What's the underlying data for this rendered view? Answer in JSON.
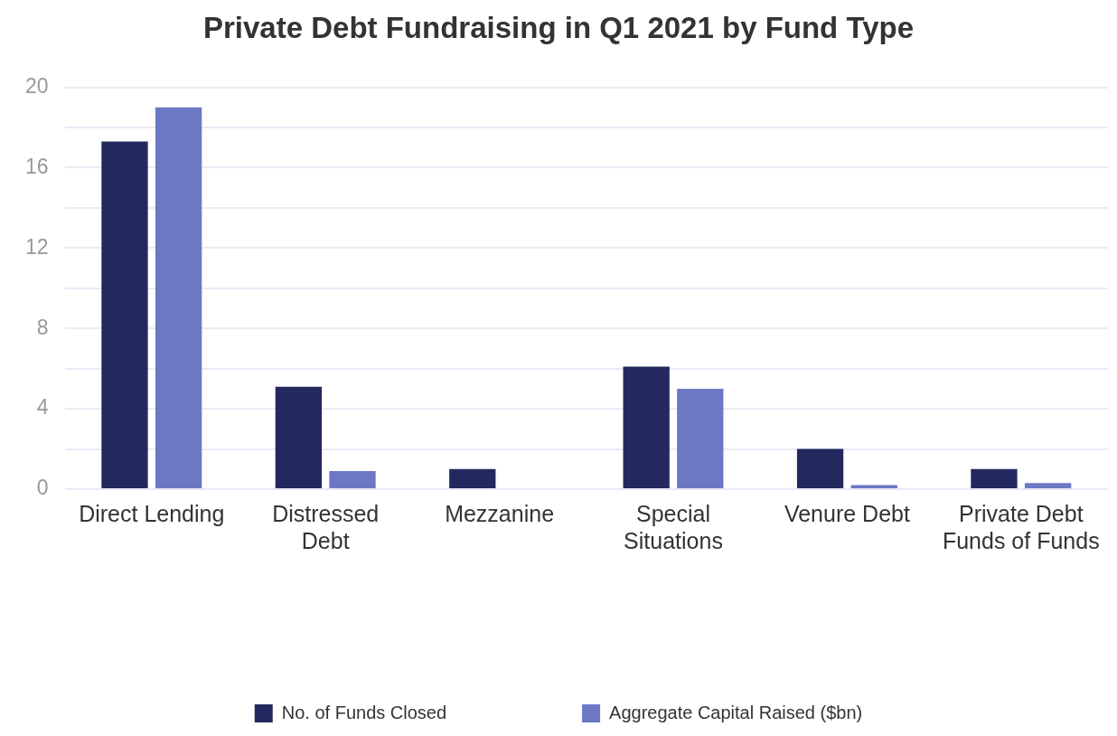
{
  "chart_data": {
    "type": "bar",
    "title": "Private Debt Fundraising in Q1 2021 by Fund Type",
    "categories": [
      "Direct Lending",
      "Distressed Debt",
      "Mezzanine",
      "Special Situations",
      "Venure Debt",
      "Private Debt Funds of Funds"
    ],
    "series": [
      {
        "name": "No. of Funds Closed",
        "color": "#23295e",
        "values": [
          17.3,
          5.1,
          1,
          6.1,
          2,
          1
        ]
      },
      {
        "name": "Aggregate Capital Raised ($bn)",
        "color": "#6c78c4",
        "values": [
          19,
          0.9,
          0,
          5,
          0.2,
          0.3
        ]
      }
    ],
    "ylim": [
      0,
      20
    ],
    "yticks": [
      0,
      {
        "value": 2,
        "label": null
      },
      4,
      {
        "value": 6,
        "label": null
      },
      8,
      {
        "value": 10,
        "label": null
      },
      12,
      {
        "value": 14,
        "label": null
      },
      16,
      {
        "value": 18,
        "label": null
      },
      20
    ],
    "grid": "y",
    "legend": "bottom"
  }
}
